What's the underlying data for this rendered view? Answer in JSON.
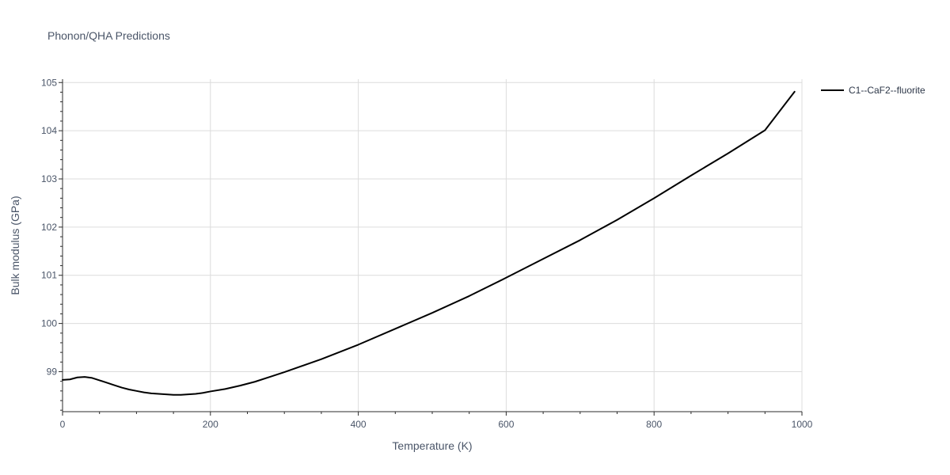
{
  "chart_data": {
    "type": "line",
    "title": "Phonon/QHA Predictions",
    "xlabel": "Temperature (K)",
    "ylabel": "Bulk modulus (GPa)",
    "xlim": [
      0,
      1000
    ],
    "ylim": [
      98.17,
      105.07
    ],
    "x_ticks": [
      0,
      200,
      400,
      600,
      800,
      1000
    ],
    "x_tick_labels": [
      "0",
      "200",
      "400",
      "600",
      "800",
      "1000"
    ],
    "x_minor_step": 50,
    "y_ticks": [
      99,
      100,
      101,
      102,
      103,
      104,
      105
    ],
    "y_tick_labels": [
      "99",
      "100",
      "101",
      "102",
      "103",
      "104",
      "105"
    ],
    "y_minor_step": 0.2,
    "grid": true,
    "legend_position": "top-right",
    "series": [
      {
        "name": "C1--CaF2--fluorite",
        "color": "#000000",
        "x": [
          0,
          10,
          20,
          30,
          40,
          50,
          60,
          70,
          80,
          90,
          100,
          110,
          120,
          130,
          140,
          150,
          160,
          170,
          180,
          190,
          200,
          220,
          240,
          260,
          280,
          300,
          350,
          400,
          450,
          500,
          550,
          600,
          650,
          700,
          750,
          800,
          850,
          900,
          950,
          990
        ],
        "y": [
          98.83,
          98.84,
          98.88,
          98.89,
          98.87,
          98.82,
          98.77,
          98.72,
          98.67,
          98.63,
          98.6,
          98.57,
          98.55,
          98.54,
          98.53,
          98.52,
          98.52,
          98.53,
          98.54,
          98.56,
          98.59,
          98.64,
          98.71,
          98.79,
          98.89,
          98.99,
          99.26,
          99.56,
          99.89,
          100.22,
          100.57,
          100.95,
          101.34,
          101.73,
          102.15,
          102.6,
          103.07,
          103.53,
          104.01,
          104.81
        ]
      }
    ]
  }
}
